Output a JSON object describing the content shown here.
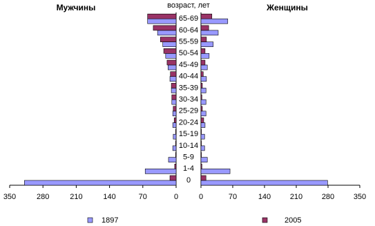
{
  "chart_data": {
    "type": "bar",
    "orientation": "horizontal",
    "axis_label": "возраст, лет",
    "categories": [
      "0",
      "1-4",
      "5-9",
      "10-14",
      "15-19",
      "20-24",
      "25-29",
      "30-34",
      "35-39",
      "40-44",
      "45-49",
      "50-54",
      "55-59",
      "60-64",
      "65-69"
    ],
    "series": [
      {
        "name": "1897",
        "color": "#9999ff"
      },
      {
        "name": "2005",
        "color": "#993366"
      }
    ],
    "panels": [
      {
        "title": "Мужчины",
        "x_reversed": true,
        "xlim": [
          0,
          350
        ],
        "xticks": [
          0,
          70,
          140,
          210,
          280,
          350
        ],
        "values": [
          [
            319,
            65,
            16,
            7,
            6,
            7,
            7,
            9,
            10,
            13,
            17,
            22,
            28,
            39,
            60
          ],
          [
            13,
            3,
            1,
            1,
            1,
            4,
            6,
            9,
            10,
            12,
            19,
            26,
            33,
            48,
            60
          ]
        ]
      },
      {
        "title": "Женщины",
        "x_reversed": false,
        "xlim": [
          0,
          350
        ],
        "xticks": [
          0,
          70,
          140,
          210,
          280,
          350
        ],
        "values": [
          [
            279,
            64,
            14,
            8,
            8,
            9,
            11,
            11,
            11,
            12,
            14,
            18,
            27,
            38,
            59
          ],
          [
            11,
            2,
            1,
            1,
            1,
            6,
            3,
            2,
            3,
            5,
            9,
            9,
            12,
            17,
            24
          ]
        ]
      }
    ]
  }
}
